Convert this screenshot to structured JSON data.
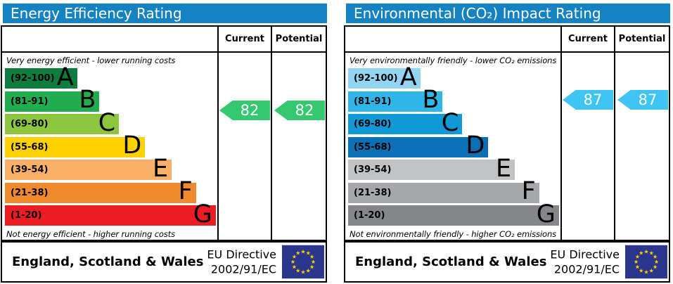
{
  "chart_data": [
    {
      "type": "bar",
      "title": "Energy Efficiency Rating",
      "categories": [
        "A (92-100)",
        "B (81-91)",
        "C (69-80)",
        "D (55-68)",
        "E (39-54)",
        "F (21-38)",
        "G (1-20)"
      ],
      "series": [
        {
          "name": "Current",
          "values": [
            82
          ],
          "band": "B"
        },
        {
          "name": "Potential",
          "values": [
            82
          ],
          "band": "B"
        }
      ],
      "band_ranges": [
        [
          92,
          100
        ],
        [
          81,
          91
        ],
        [
          69,
          80
        ],
        [
          55,
          68
        ],
        [
          39,
          54
        ],
        [
          21,
          38
        ],
        [
          1,
          20
        ]
      ],
      "top_note": "Very energy efficient - lower running costs",
      "bottom_note": "Not energy efficient - higher running costs",
      "region": "England, Scotland & Wales",
      "directive": "EU Directive 2002/91/EC",
      "legend_position": "top-right-columns",
      "xlim": [
        1,
        100
      ]
    },
    {
      "type": "bar",
      "title": "Environmental (CO₂) Impact Rating",
      "categories": [
        "A (92-100)",
        "B (81-91)",
        "C (69-80)",
        "D (55-68)",
        "E (39-54)",
        "F (21-38)",
        "G (1-20)"
      ],
      "series": [
        {
          "name": "Current",
          "values": [
            87
          ],
          "band": "B"
        },
        {
          "name": "Potential",
          "values": [
            87
          ],
          "band": "B"
        }
      ],
      "band_ranges": [
        [
          92,
          100
        ],
        [
          81,
          91
        ],
        [
          69,
          80
        ],
        [
          55,
          68
        ],
        [
          39,
          54
        ],
        [
          21,
          38
        ],
        [
          1,
          20
        ]
      ],
      "top_note": "Very environmentally friendly - lower CO₂ emissions",
      "bottom_note": "Not environmentally friendly - higher CO₂ emissions",
      "region": "England, Scotland & Wales",
      "directive": "EU Directive 2002/91/EC",
      "legend_position": "top-right-columns",
      "xlim": [
        1,
        100
      ]
    }
  ],
  "panels": [
    {
      "title": "Energy Efficiency Rating",
      "header_color": "#1582c4",
      "columns": {
        "current": "Current",
        "potential": "Potential"
      },
      "top_label": "Very energy efficient - lower running costs",
      "bottom_label": "Not energy efficient - higher running costs",
      "bands": [
        {
          "letter": "A",
          "range_label": "(92-100)",
          "color": "#0c7c3f",
          "width_pct": 34
        },
        {
          "letter": "B",
          "range_label": "(81-91)",
          "color": "#21ac50",
          "width_pct": 44.5
        },
        {
          "letter": "C",
          "range_label": "(69-80)",
          "color": "#8cc63f",
          "width_pct": 53.7
        },
        {
          "letter": "D",
          "range_label": "(55-68)",
          "color": "#fed100",
          "width_pct": 66
        },
        {
          "letter": "E",
          "range_label": "(39-54)",
          "color": "#fbaf67",
          "width_pct": 78.5
        },
        {
          "letter": "F",
          "range_label": "(21-38)",
          "color": "#f08a2e",
          "width_pct": 90
        },
        {
          "letter": "G",
          "range_label": "(1-20)",
          "color": "#ec1c24",
          "width_pct": 99.3
        }
      ],
      "current_value": "82",
      "potential_value": "82",
      "arrow_color": "#34c971",
      "footer": {
        "region": "England, Scotland & Wales",
        "directive_line1": "EU Directive",
        "directive_line2": "2002/91/EC"
      }
    },
    {
      "title": "Environmental (CO₂) Impact Rating",
      "header_color": "#1582c4",
      "columns": {
        "current": "Current",
        "potential": "Potential"
      },
      "top_label": "Very environmentally friendly - lower CO₂ emissions",
      "bottom_label": "Not environmentally friendly - higher CO₂ emissions",
      "bands": [
        {
          "letter": "A",
          "range_label": "(92-100)",
          "color": "#92d5f3",
          "width_pct": 34
        },
        {
          "letter": "B",
          "range_label": "(81-91)",
          "color": "#2fb5e8",
          "width_pct": 44.5
        },
        {
          "letter": "C",
          "range_label": "(69-80)",
          "color": "#0f99d6",
          "width_pct": 53.7
        },
        {
          "letter": "D",
          "range_label": "(55-68)",
          "color": "#0a6fb5",
          "width_pct": 66
        },
        {
          "letter": "E",
          "range_label": "(39-54)",
          "color": "#c0c2c4",
          "width_pct": 78.5
        },
        {
          "letter": "F",
          "range_label": "(21-38)",
          "color": "#a5a7aa",
          "width_pct": 90
        },
        {
          "letter": "G",
          "range_label": "(1-20)",
          "color": "#848689",
          "width_pct": 99.3
        }
      ],
      "current_value": "87",
      "potential_value": "87",
      "arrow_color": "#3ec5f4",
      "footer": {
        "region": "England, Scotland & Wales",
        "directive_line1": "EU Directive",
        "directive_line2": "2002/91/EC"
      }
    }
  ],
  "flag": {
    "background": "#29368c",
    "star_color": "#ffcc00"
  }
}
